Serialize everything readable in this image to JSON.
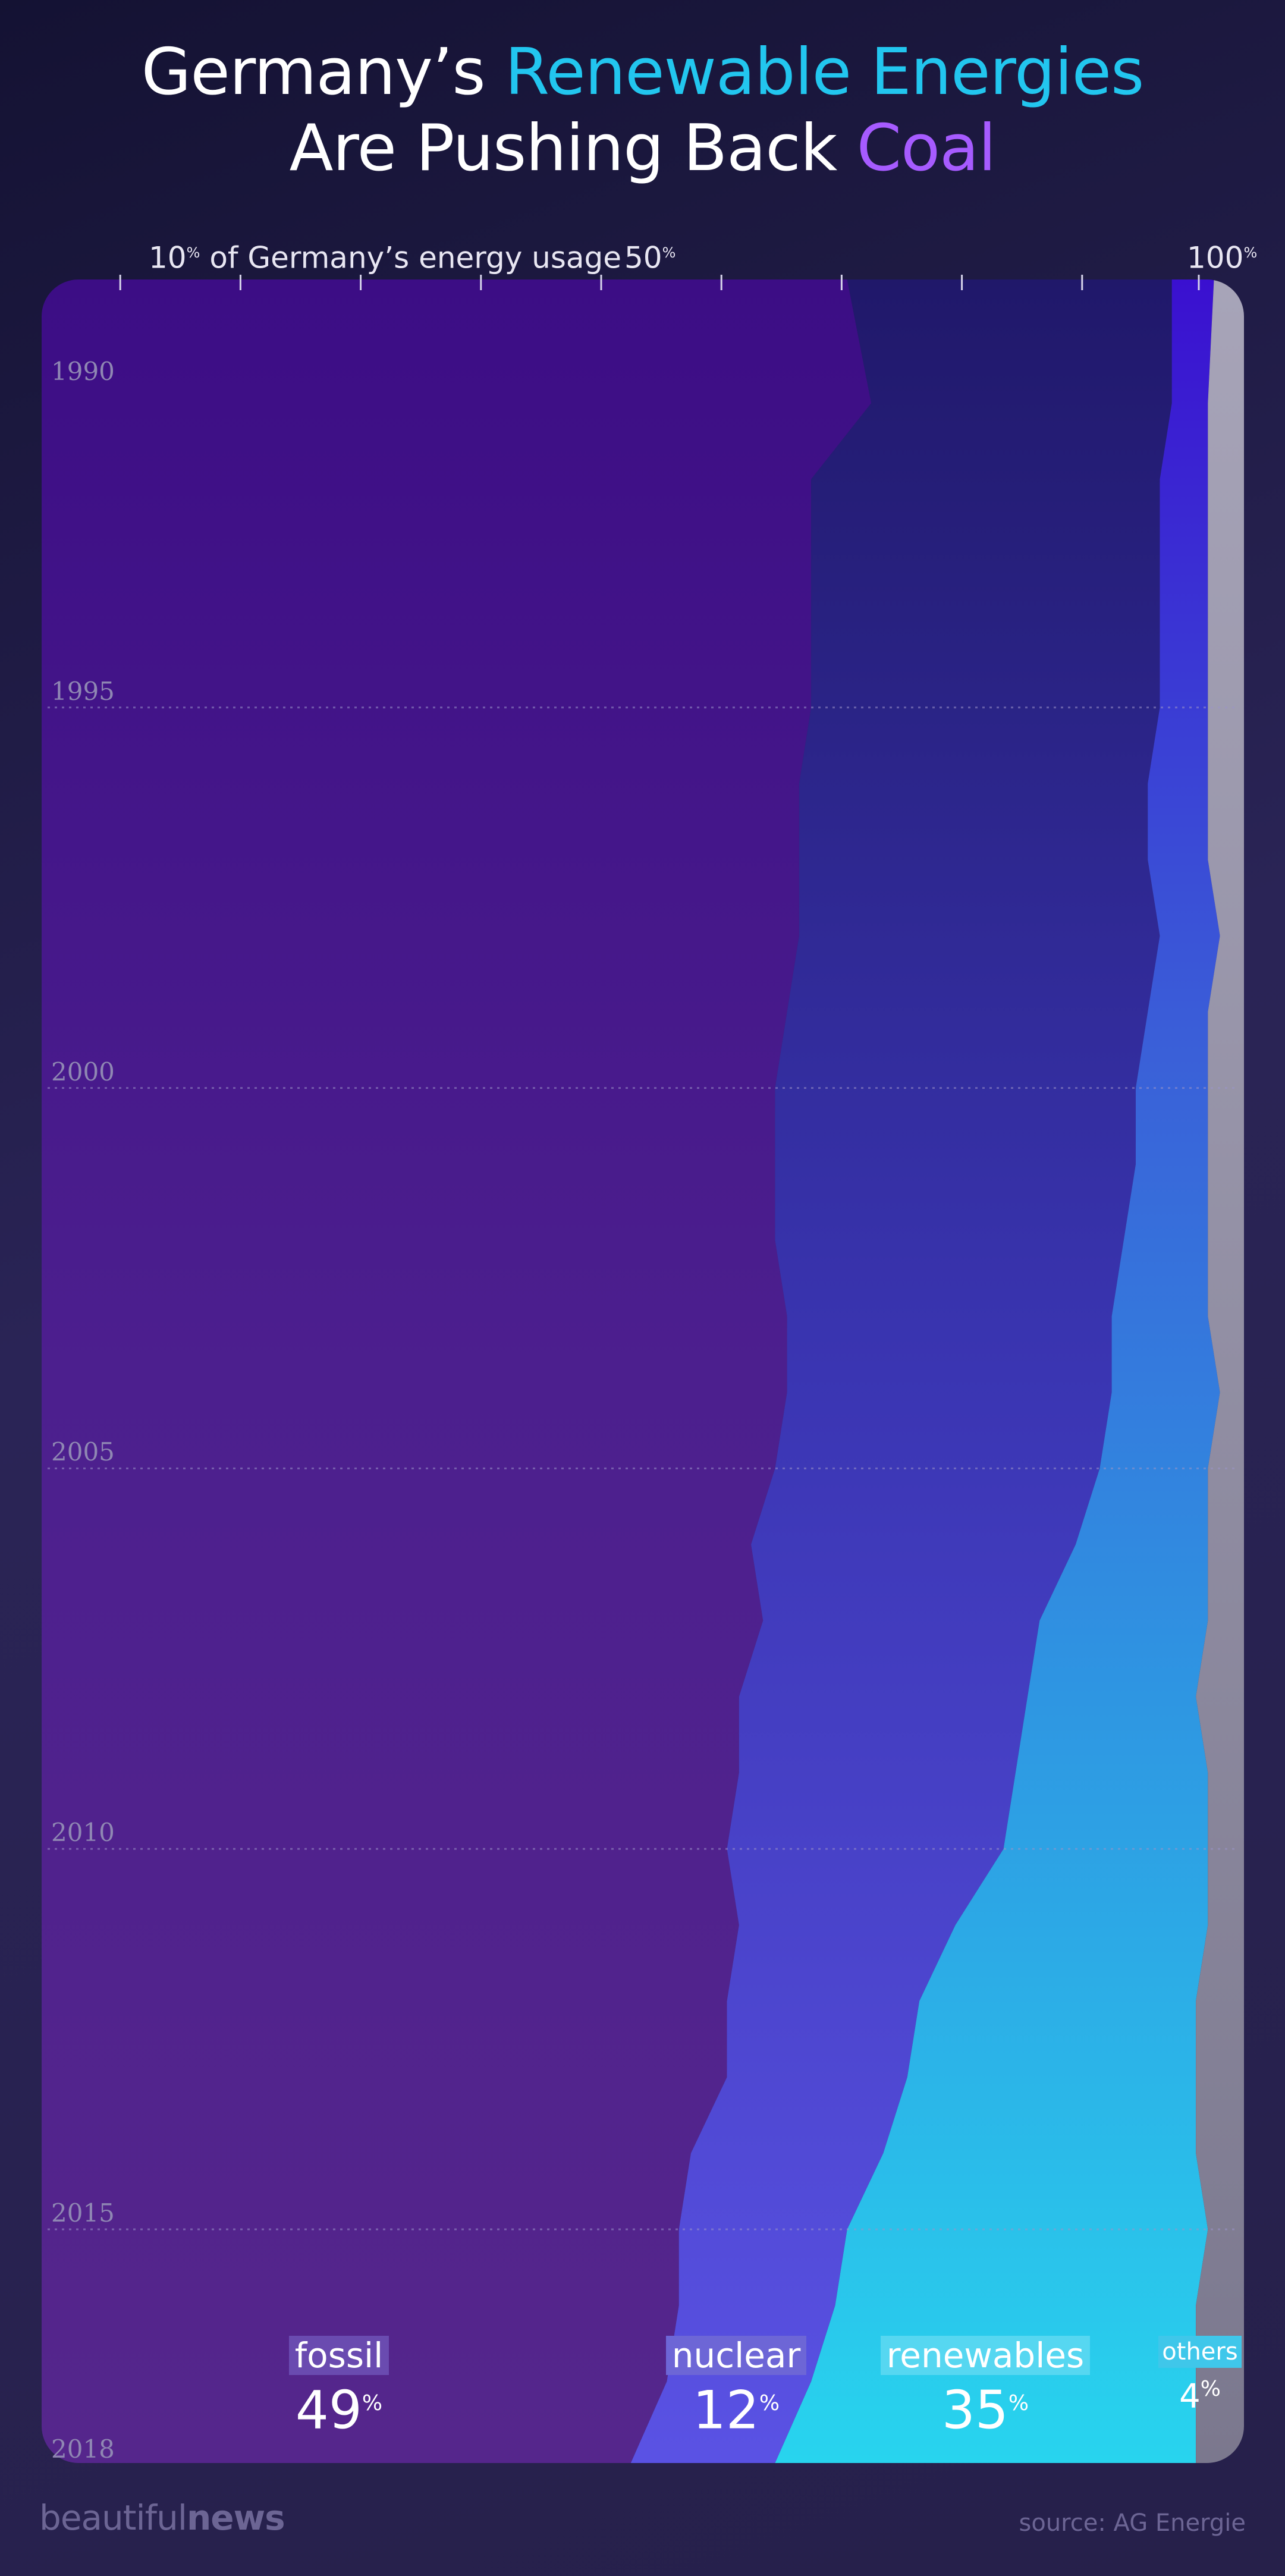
{
  "header": {
    "title_line1_a": "Germany’s ",
    "title_line1_b": "Renewable Energies",
    "title_line2_a": "Are Pushing Back ",
    "title_line2_b": "Coal"
  },
  "axis": {
    "caption_num": "10",
    "caption_unit": "%",
    "caption_text": " of Germany’s energy usage",
    "mid_num": "50",
    "mid_unit": "%",
    "end_num": "100",
    "end_unit": "%"
  },
  "footer": {
    "brand_light": "beautiful",
    "brand_bold": "news",
    "source": "source: AG Energie"
  },
  "colors": {
    "fossil": "#4a1d8c",
    "nuclear": "#4b3fd0",
    "renewables": "#26c8ea",
    "others": "#8e8b9f",
    "title_renewables": "#22c6ef",
    "title_coal": "#a65bff"
  },
  "chart_data": {
    "type": "area",
    "stacked": "100%",
    "orientation": "vertical (years top to bottom)",
    "title": "Germany’s Renewable Energies Are Pushing Back Coal",
    "x_label": "of Germany’s energy usage",
    "x_unit": "%",
    "x_range": [
      0,
      100
    ],
    "x_ticks": [
      10,
      20,
      30,
      40,
      50,
      60,
      70,
      80,
      90,
      100
    ],
    "x_tick_labels": [
      "10%",
      "50%",
      "100%"
    ],
    "year_labels": [
      "1990",
      "1995",
      "2000",
      "2005",
      "2010",
      "2015",
      "2018"
    ],
    "years": [
      1990,
      1991,
      1992,
      1993,
      1994,
      1995,
      1996,
      1997,
      1998,
      1999,
      2000,
      2001,
      2002,
      2003,
      2004,
      2005,
      2006,
      2007,
      2008,
      2009,
      2010,
      2011,
      2012,
      2013,
      2014,
      2015,
      2016,
      2017,
      2018
    ],
    "series": [
      {
        "name": "fossil",
        "values": [
          67,
          69,
          64,
          64,
          64,
          64,
          63,
          63,
          63,
          62,
          61,
          61,
          61,
          62,
          62,
          61,
          59,
          60,
          58,
          58,
          57,
          58,
          57,
          57,
          54,
          53,
          53,
          52,
          49
        ]
      },
      {
        "name": "nuclear",
        "values": [
          27,
          25,
          29,
          29,
          29,
          29,
          29,
          29,
          30,
          30,
          30,
          30,
          29,
          27,
          27,
          27,
          27,
          23,
          24,
          23,
          23,
          18,
          16,
          15,
          16,
          14,
          13,
          12,
          12
        ]
      },
      {
        "name": "renewables",
        "values": [
          3.5,
          3,
          4,
          4,
          4,
          4,
          5,
          5,
          5,
          5,
          6,
          6,
          7,
          8,
          9,
          9,
          11,
          14,
          14,
          16,
          17,
          21,
          23,
          24,
          26,
          30,
          30,
          32,
          35
        ]
      },
      {
        "name": "others",
        "values": [
          2.5,
          3,
          3,
          3,
          3,
          3,
          3,
          3,
          2,
          3,
          3,
          3,
          3,
          3,
          2,
          3,
          3,
          3,
          4,
          3,
          3,
          3,
          4,
          4,
          4,
          3,
          4,
          4,
          4
        ]
      }
    ],
    "labels_2018": [
      {
        "name": "fossil",
        "value": "49",
        "unit": "%"
      },
      {
        "name": "nuclear",
        "value": "12",
        "unit": "%"
      },
      {
        "name": "renewables",
        "value": "35",
        "unit": "%"
      },
      {
        "name": "others",
        "value": "4",
        "unit": "%"
      }
    ]
  }
}
